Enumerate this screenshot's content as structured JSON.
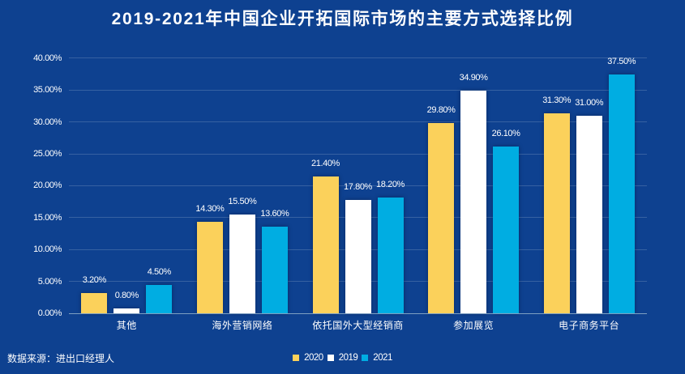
{
  "title": "2019-2021年中国企业开拓国际市场的主要方式选择比例",
  "source_note": "数据来源：进出口经理人",
  "colors": {
    "background": "#0E4190",
    "series_2020": "#FBD15B",
    "series_2019": "#FFFFFF",
    "series_2021": "#00ADE2",
    "text": "#FFFFFF",
    "gridline": "rgba(255,255,255,0.20)",
    "axis_line": "#7EA0C2"
  },
  "chart_data": {
    "type": "bar",
    "title": "2019-2021年中国企业开拓国际市场的主要方式选择比例",
    "categories": [
      "其他",
      "海外营销网络",
      "依托国外大型经销商",
      "参加展览",
      "电子商务平台"
    ],
    "series": [
      {
        "name": "2020",
        "color": "#FBD15B",
        "values": [
          3.2,
          14.3,
          21.4,
          29.8,
          31.3
        ]
      },
      {
        "name": "2019",
        "color": "#FFFFFF",
        "values": [
          0.8,
          15.5,
          17.8,
          34.9,
          31.0
        ]
      },
      {
        "name": "2021",
        "color": "#00ADE2",
        "values": [
          4.5,
          13.6,
          18.2,
          26.1,
          37.5
        ]
      }
    ],
    "value_labels": [
      [
        "3.20%",
        "14.30%",
        "21.40%",
        "29.80%",
        "31.30%"
      ],
      [
        "0.80%",
        "15.50%",
        "17.80%",
        "34.90%",
        "31.00%"
      ],
      [
        "4.50%",
        "13.60%",
        "18.20%",
        "26.10%",
        "37.50%"
      ]
    ],
    "y_ticks": [
      "0.00%",
      "5.00%",
      "10.00%",
      "15.00%",
      "20.00%",
      "25.00%",
      "30.00%",
      "35.00%",
      "40.00%"
    ],
    "ylim": [
      0,
      40
    ],
    "xlabel": "",
    "ylabel": "",
    "grid": true,
    "legend_position": "bottom-center",
    "legend_entries": [
      "2020",
      "2019",
      "2021"
    ]
  }
}
